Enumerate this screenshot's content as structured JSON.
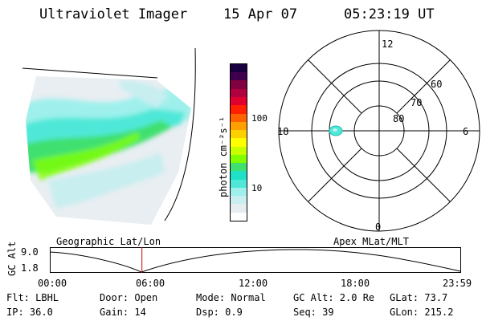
{
  "header": {
    "instrument": "Ultraviolet Imager",
    "date": "15 Apr 07",
    "time": "05:23:19 UT"
  },
  "colorbar": {
    "unit_label": "photon cm⁻²s⁻¹",
    "tick_labels": [
      "100",
      "10"
    ],
    "colors": [
      "#ffffff",
      "#e7ecf0",
      "#c8eef0",
      "#9ff0ec",
      "#4fe8d8",
      "#20e0c8",
      "#40e070",
      "#80ff00",
      "#c8ff00",
      "#ffff00",
      "#ffd000",
      "#ffa000",
      "#ff6000",
      "#ff2000",
      "#e00030",
      "#b00040",
      "#800040",
      "#400050",
      "#180040"
    ]
  },
  "polar_plot": {
    "lat_labels": [
      "60",
      "70",
      "80"
    ],
    "mlt_labels": {
      "top": "12",
      "bottom": "0",
      "left": "18",
      "right": "6"
    }
  },
  "timeline": {
    "left_label": "Geographic Lat/Lon",
    "right_label": "Apex MLat/MLT",
    "axis_label": "GC Alt",
    "y_max": "9.0",
    "y_min": "1.8",
    "x_ticks": [
      "00:00",
      "06:00",
      "12:00",
      "18:00",
      "23:59"
    ],
    "current_fraction": 0.224,
    "marker_color": "#d00000"
  },
  "footer": {
    "flt": "Flt: LBHL",
    "door": "Door: Open",
    "mode": "Mode: Normal",
    "gc_alt": "GC Alt: 2.0 Re",
    "glat": "GLat:  73.7",
    "ip": "IP: 36.0",
    "gain": "Gain: 14",
    "dsp": "Dsp:    0.9",
    "seq": "Seq: 39",
    "glon": "GLon: 215.2"
  }
}
